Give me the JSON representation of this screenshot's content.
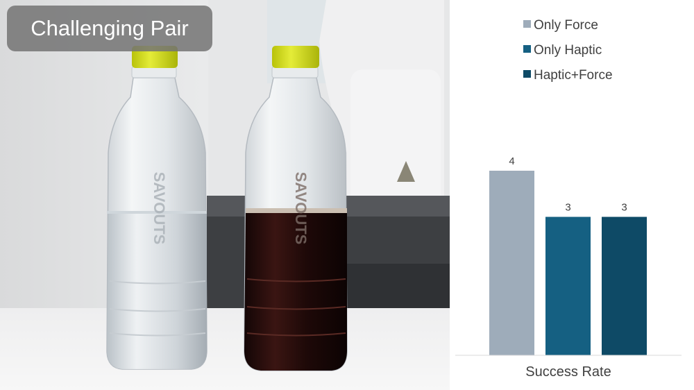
{
  "photo": {
    "label": "Challenging Pair",
    "bottle_text": "SAVOUTS"
  },
  "colors": {
    "only_force": "#9eacba",
    "only_haptic": "#156082",
    "haptic_force": "#0e4a66",
    "label_bg": "#737373"
  },
  "chart_data": {
    "type": "bar",
    "categories": [
      "Success Rate"
    ],
    "series": [
      {
        "name": "Only Force",
        "values": [
          4
        ],
        "color": "#9eacba"
      },
      {
        "name": "Only Haptic",
        "values": [
          3
        ],
        "color": "#156082"
      },
      {
        "name": "Haptic+Force",
        "values": [
          3
        ],
        "color": "#0e4a66"
      }
    ],
    "data_labels": [
      "4",
      "3",
      "3"
    ],
    "title": "",
    "xlabel": "Success Rate",
    "ylabel": "",
    "ylim": [
      0,
      4
    ],
    "grid": false,
    "legend": "top"
  }
}
